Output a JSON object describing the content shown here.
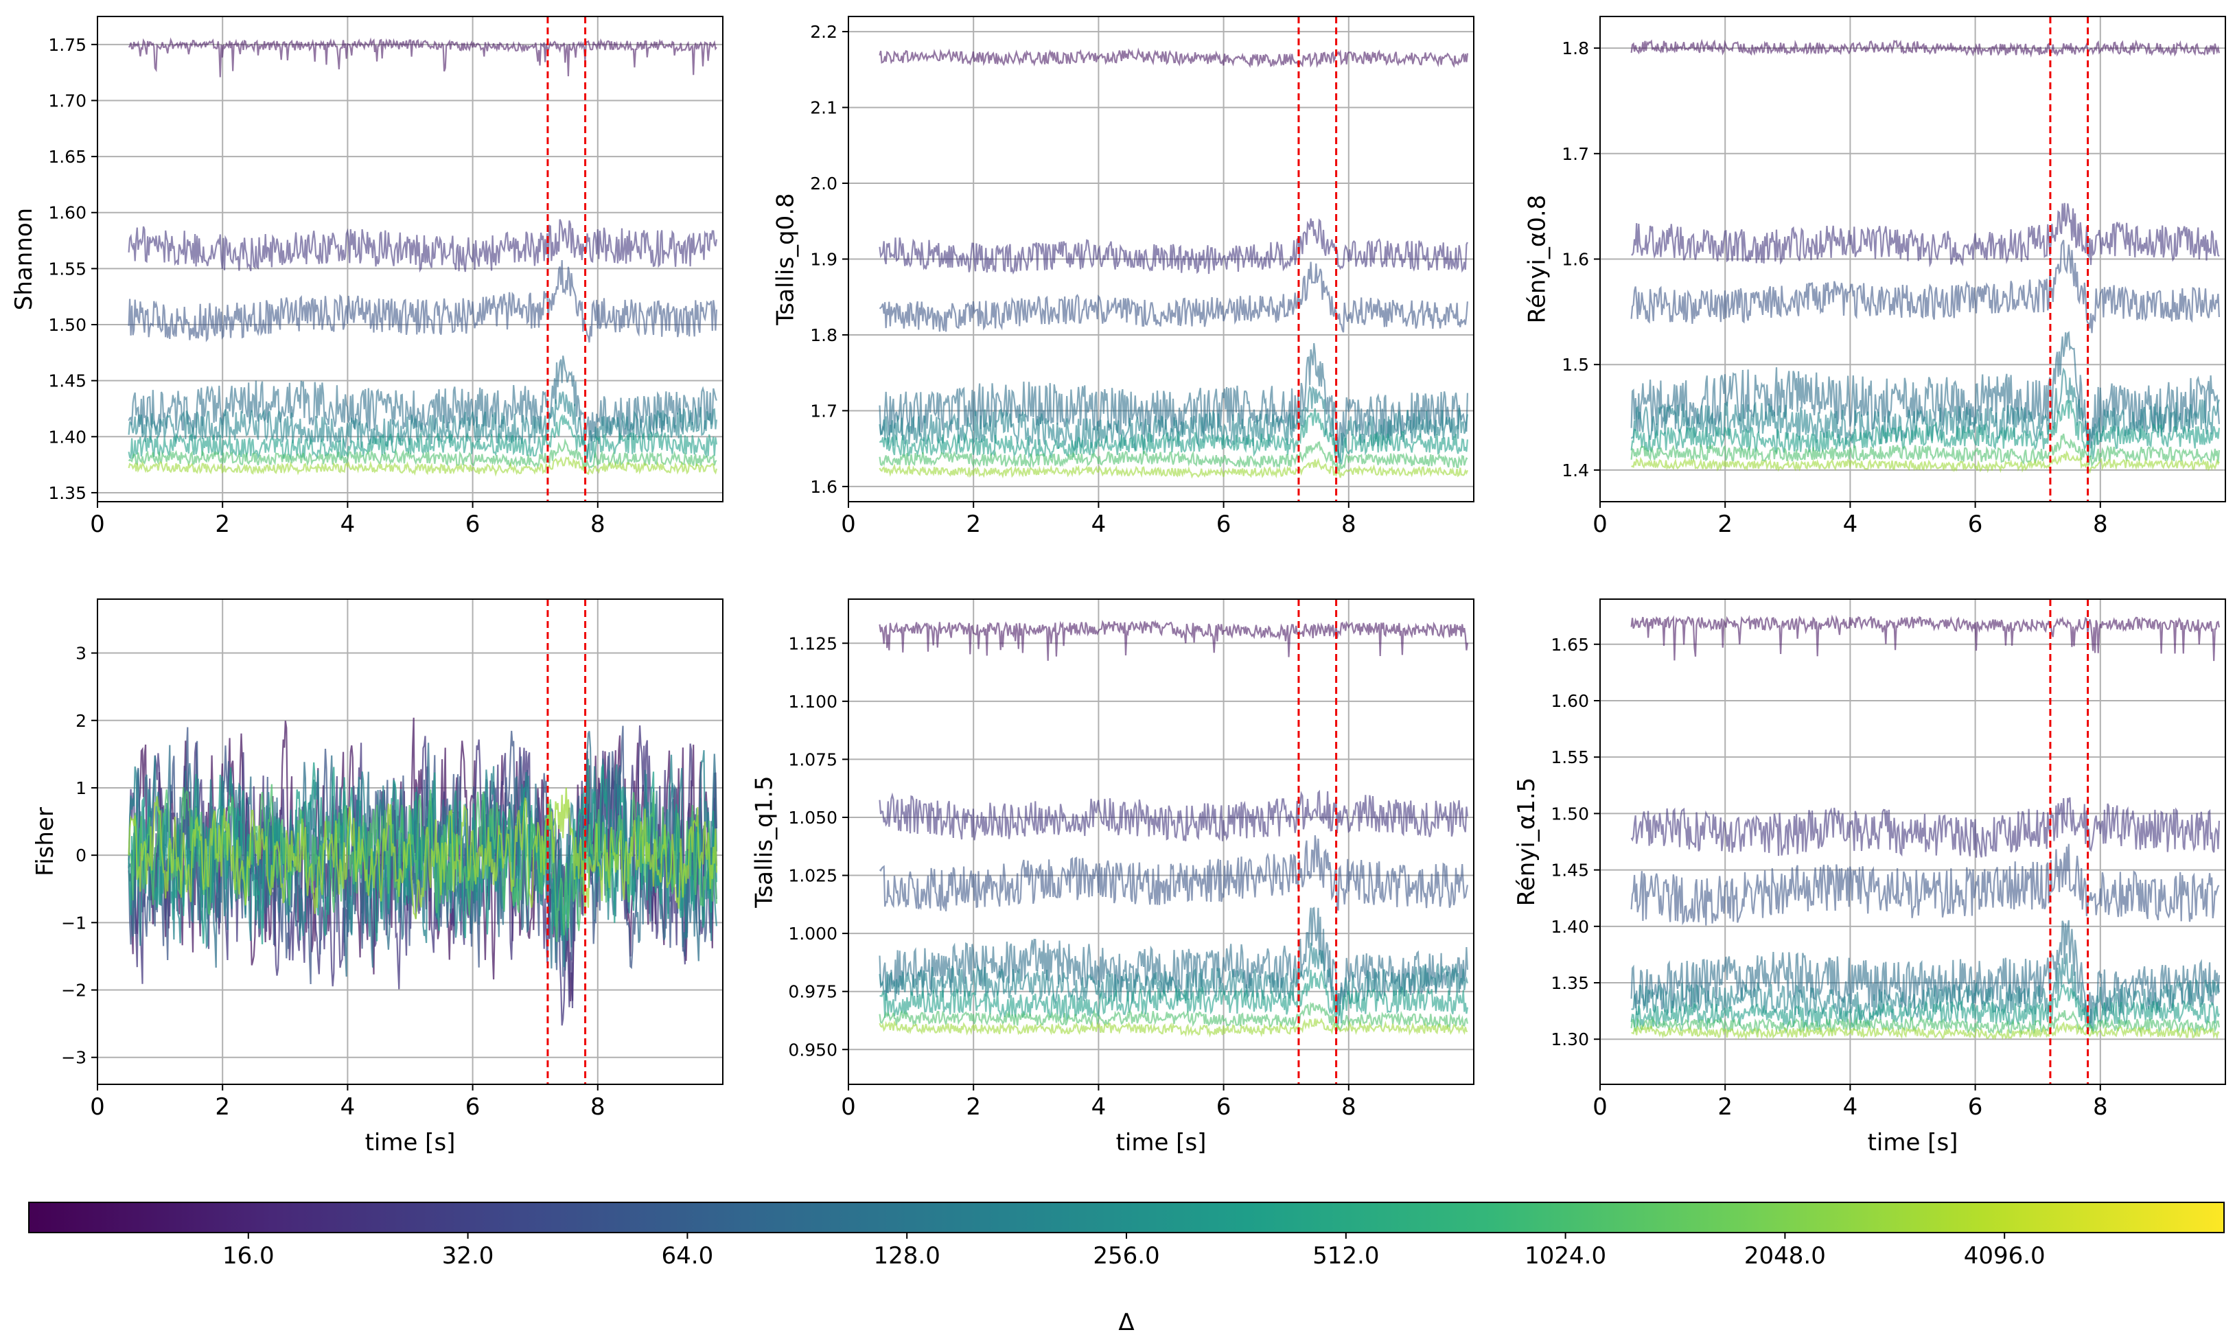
{
  "figure": {
    "colorbar": {
      "label": "Δ",
      "tick_labels": [
        "16.0",
        "32.0",
        "64.0",
        "128.0",
        "256.0",
        "512.0",
        "1024.0",
        "2048.0",
        "4096.0"
      ],
      "tick_values": [
        16,
        32,
        64,
        128,
        256,
        512,
        1024,
        2048,
        4096
      ],
      "range": [
        8,
        8192
      ],
      "scale": "log2",
      "colormap": "viridis",
      "colormap_stops": [
        "#440154",
        "#482878",
        "#3e4989",
        "#31688e",
        "#26828e",
        "#1f9e89",
        "#35b779",
        "#6ece58",
        "#b5de2b",
        "#fde725"
      ]
    },
    "event_markers": {
      "times": [
        7.2,
        7.8
      ],
      "color": "#ee0000",
      "style": "dashed"
    },
    "series_colors": [
      "#4b1d66",
      "#45387f",
      "#3f5889",
      "#30708c",
      "#25838d",
      "#1f9e89",
      "#4ec06e",
      "#9fd83a"
    ]
  },
  "chart_data": [
    {
      "type": "line",
      "id": "shannon",
      "ylabel": "Shannon",
      "xlabel": "",
      "xlim": [
        0,
        10
      ],
      "ylim": [
        1.342,
        1.775
      ],
      "xticks": [
        0,
        2,
        4,
        6,
        8
      ],
      "xtick_labels": [
        "0",
        "2",
        "4",
        "6",
        "8"
      ],
      "yticks": [
        1.35,
        1.4,
        1.45,
        1.5,
        1.55,
        1.6,
        1.65,
        1.7,
        1.75
      ],
      "ytick_labels": [
        "1.35",
        "1.40",
        "1.45",
        "1.50",
        "1.55",
        "1.60",
        "1.65",
        "1.70",
        "1.75"
      ],
      "grid": true,
      "series": [
        {
          "name": "Δ=16",
          "mean": 1.749,
          "noise": 0.003,
          "dips": 0.025
        },
        {
          "name": "Δ=32",
          "mean": 1.568,
          "noise": 0.012,
          "bump": 0.01
        },
        {
          "name": "Δ=64",
          "mean": 1.508,
          "noise": 0.012,
          "bump": 0.03
        },
        {
          "name": "Δ=128",
          "mean": 1.425,
          "noise": 0.014,
          "bump": 0.035
        },
        {
          "name": "Δ=256",
          "mean": 1.408,
          "noise": 0.01,
          "bump": 0.03
        },
        {
          "name": "Δ=512",
          "mean": 1.392,
          "noise": 0.007,
          "bump": 0.02
        },
        {
          "name": "Δ=1024",
          "mean": 1.38,
          "noise": 0.004,
          "bump": 0.012
        },
        {
          "name": "Δ=2048",
          "mean": 1.372,
          "noise": 0.003,
          "bump": 0.006
        }
      ]
    },
    {
      "type": "line",
      "id": "tsallis_q08",
      "ylabel": "Tsallis_q0.8",
      "xlabel": "",
      "xlim": [
        0,
        10
      ],
      "ylim": [
        1.58,
        2.22
      ],
      "xticks": [
        0,
        2,
        4,
        6,
        8
      ],
      "xtick_labels": [
        "0",
        "2",
        "4",
        "6",
        "8"
      ],
      "yticks": [
        1.6,
        1.7,
        1.8,
        1.9,
        2.0,
        2.1,
        2.2
      ],
      "ytick_labels": [
        "1.6",
        "1.7",
        "1.8",
        "1.9",
        "2.0",
        "2.1",
        "2.2"
      ],
      "grid": true,
      "series": [
        {
          "name": "Δ=16",
          "mean": 2.165,
          "noise": 0.006,
          "dips": 0
        },
        {
          "name": "Δ=32",
          "mean": 1.905,
          "noise": 0.014,
          "bump": 0.03
        },
        {
          "name": "Δ=64",
          "mean": 1.83,
          "noise": 0.014,
          "bump": 0.05
        },
        {
          "name": "Δ=128",
          "mean": 1.7,
          "noise": 0.022,
          "bump": 0.07
        },
        {
          "name": "Δ=256",
          "mean": 1.675,
          "noise": 0.016,
          "bump": 0.05
        },
        {
          "name": "Δ=512",
          "mean": 1.655,
          "noise": 0.01,
          "bump": 0.04
        },
        {
          "name": "Δ=1024",
          "mean": 1.635,
          "noise": 0.006,
          "bump": 0.02
        },
        {
          "name": "Δ=2048",
          "mean": 1.62,
          "noise": 0.004,
          "bump": 0.01
        }
      ]
    },
    {
      "type": "line",
      "id": "renyi_a08",
      "ylabel": "Rényi_α0.8",
      "xlabel": "",
      "xlim": [
        0,
        10
      ],
      "ylim": [
        1.37,
        1.83
      ],
      "xticks": [
        0,
        2,
        4,
        6,
        8
      ],
      "xtick_labels": [
        "0",
        "2",
        "4",
        "6",
        "8"
      ],
      "yticks": [
        1.4,
        1.5,
        1.6,
        1.7,
        1.8
      ],
      "ytick_labels": [
        "1.4",
        "1.5",
        "1.6",
        "1.7",
        "1.8"
      ],
      "grid": true,
      "series": [
        {
          "name": "Δ=16",
          "mean": 1.8,
          "noise": 0.004,
          "dips": 0
        },
        {
          "name": "Δ=32",
          "mean": 1.615,
          "noise": 0.012,
          "bump": 0.02
        },
        {
          "name": "Δ=64",
          "mean": 1.56,
          "noise": 0.012,
          "bump": 0.04
        },
        {
          "name": "Δ=128",
          "mean": 1.465,
          "noise": 0.018,
          "bump": 0.05
        },
        {
          "name": "Δ=256",
          "mean": 1.445,
          "noise": 0.012,
          "bump": 0.04
        },
        {
          "name": "Δ=512",
          "mean": 1.43,
          "noise": 0.008,
          "bump": 0.03
        },
        {
          "name": "Δ=1024",
          "mean": 1.415,
          "noise": 0.005,
          "bump": 0.015
        },
        {
          "name": "Δ=2048",
          "mean": 1.405,
          "noise": 0.003,
          "bump": 0.008
        }
      ]
    },
    {
      "type": "line",
      "id": "fisher",
      "ylabel": "Fisher",
      "xlabel": "time [s]",
      "xlim": [
        0,
        10
      ],
      "ylim": [
        -3.4,
        3.8
      ],
      "xticks": [
        0,
        2,
        4,
        6,
        8
      ],
      "xtick_labels": [
        "0",
        "2",
        "4",
        "6",
        "8"
      ],
      "yticks": [
        -3,
        -2,
        -1,
        0,
        1,
        2,
        3
      ],
      "ytick_labels": [
        "−3",
        "−2",
        "−1",
        "0",
        "1",
        "2",
        "3"
      ],
      "grid": true,
      "series": [
        {
          "name": "Δ=16",
          "mean": 0,
          "noise": 1.0,
          "bump": -1.2
        },
        {
          "name": "Δ=32",
          "mean": 0,
          "noise": 1.0,
          "bump": -1.2
        },
        {
          "name": "Δ=64",
          "mean": 0,
          "noise": 0.95,
          "bump": -1.1
        },
        {
          "name": "Δ=128",
          "mean": 0,
          "noise": 0.9,
          "bump": -1.1
        },
        {
          "name": "Δ=256",
          "mean": 0,
          "noise": 0.8,
          "bump": -1.0
        },
        {
          "name": "Δ=512",
          "mean": 0,
          "noise": 0.7,
          "bump": -0.9
        },
        {
          "name": "Δ=1024",
          "mean": 0,
          "noise": 0.55,
          "bump": -0.8
        },
        {
          "name": "Δ=2048",
          "mean": 0,
          "noise": 0.45,
          "bump": 0.6
        }
      ]
    },
    {
      "type": "line",
      "id": "tsallis_q15",
      "ylabel": "Tsallis_q1.5",
      "xlabel": "time [s]",
      "xlim": [
        0,
        10
      ],
      "ylim": [
        0.935,
        1.144
      ],
      "xticks": [
        0,
        2,
        4,
        6,
        8
      ],
      "xtick_labels": [
        "0",
        "2",
        "4",
        "6",
        "8"
      ],
      "yticks": [
        0.95,
        0.975,
        1.0,
        1.025,
        1.05,
        1.075,
        1.1,
        1.125
      ],
      "ytick_labels": [
        "0.950",
        "0.975",
        "1.000",
        "1.025",
        "1.050",
        "1.075",
        "1.100",
        "1.125"
      ],
      "grid": true,
      "series": [
        {
          "name": "Δ=16",
          "mean": 1.131,
          "noise": 0.002,
          "dips": 0.012
        },
        {
          "name": "Δ=32",
          "mean": 1.05,
          "noise": 0.006,
          "bump": 0.005
        },
        {
          "name": "Δ=64",
          "mean": 1.022,
          "noise": 0.007,
          "bump": 0.01
        },
        {
          "name": "Δ=128",
          "mean": 0.985,
          "noise": 0.007,
          "bump": 0.02
        },
        {
          "name": "Δ=256",
          "mean": 0.978,
          "noise": 0.005,
          "bump": 0.015
        },
        {
          "name": "Δ=512",
          "mean": 0.97,
          "noise": 0.004,
          "bump": 0.012
        },
        {
          "name": "Δ=1024",
          "mean": 0.963,
          "noise": 0.002,
          "bump": 0.006
        },
        {
          "name": "Δ=2048",
          "mean": 0.959,
          "noise": 0.0015,
          "bump": 0.003
        }
      ]
    },
    {
      "type": "line",
      "id": "renyi_a15",
      "ylabel": "Rényi_α1.5",
      "xlabel": "time [s]",
      "xlim": [
        0,
        10
      ],
      "ylim": [
        1.26,
        1.69
      ],
      "xticks": [
        0,
        2,
        4,
        6,
        8
      ],
      "xtick_labels": [
        "0",
        "2",
        "4",
        "6",
        "8"
      ],
      "yticks": [
        1.3,
        1.35,
        1.4,
        1.45,
        1.5,
        1.55,
        1.6,
        1.65
      ],
      "ytick_labels": [
        "1.30",
        "1.35",
        "1.40",
        "1.45",
        "1.50",
        "1.55",
        "1.60",
        "1.65"
      ],
      "grid": true,
      "series": [
        {
          "name": "Δ=16",
          "mean": 1.668,
          "noise": 0.004,
          "dips": 0.03
        },
        {
          "name": "Δ=32",
          "mean": 1.485,
          "noise": 0.014,
          "bump": 0.01
        },
        {
          "name": "Δ=64",
          "mean": 1.43,
          "noise": 0.016,
          "bump": 0.02
        },
        {
          "name": "Δ=128",
          "mean": 1.35,
          "noise": 0.015,
          "bump": 0.04
        },
        {
          "name": "Δ=256",
          "mean": 1.335,
          "noise": 0.01,
          "bump": 0.03
        },
        {
          "name": "Δ=512",
          "mean": 1.322,
          "noise": 0.007,
          "bump": 0.02
        },
        {
          "name": "Δ=1024",
          "mean": 1.312,
          "noise": 0.004,
          "bump": 0.01
        },
        {
          "name": "Δ=2048",
          "mean": 1.306,
          "noise": 0.003,
          "bump": 0.005
        }
      ]
    }
  ]
}
